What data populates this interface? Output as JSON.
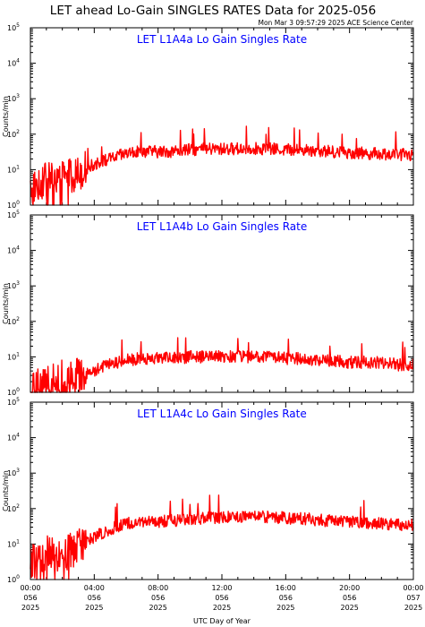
{
  "header": {
    "title": "LET ahead Lo-Gain SINGLES RATES Data for 2025-056",
    "timestamp": "Mon Mar  3 09:57:29 2025 ACE Science Center"
  },
  "colors": {
    "series": "#ff0000",
    "panel_title": "#0000ff"
  },
  "chart_data": [
    {
      "type": "line",
      "title": "LET L1A4a Lo Gain Singles Rate",
      "ylabel": "Counts/min",
      "yscale": "log",
      "ylim": [
        1,
        100000
      ],
      "ytick_exponents": [
        "0",
        "1",
        "2",
        "3",
        "4",
        "5"
      ],
      "xlim": [
        0,
        24
      ],
      "x_hours": [
        0,
        1,
        2,
        3,
        4,
        5,
        6,
        7,
        8,
        9,
        10,
        11,
        12,
        13,
        14,
        15,
        16,
        17,
        18,
        19,
        20,
        21,
        22,
        23,
        24
      ],
      "series": [
        {
          "values": [
            3,
            5,
            6,
            8,
            14,
            20,
            28,
            33,
            32,
            33,
            36,
            38,
            38,
            39,
            40,
            38,
            37,
            36,
            34,
            32,
            30,
            29,
            28,
            27,
            26
          ]
        }
      ]
    },
    {
      "type": "line",
      "title": "LET L1A4b Lo Gain Singles Rate",
      "ylabel": "Counts/min",
      "yscale": "log",
      "ylim": [
        1,
        100000
      ],
      "ytick_exponents": [
        "0",
        "1",
        "2",
        "3",
        "4",
        "5"
      ],
      "xlim": [
        0,
        24
      ],
      "x_hours": [
        0,
        1,
        2,
        3,
        4,
        5,
        6,
        7,
        8,
        9,
        10,
        11,
        12,
        13,
        14,
        15,
        16,
        17,
        18,
        19,
        20,
        21,
        22,
        23,
        24
      ],
      "series": [
        {
          "values": [
            1.5,
            2,
            2,
            3,
            4,
            6,
            8,
            9,
            9,
            9,
            10,
            10,
            10,
            10,
            10,
            10,
            9,
            9,
            8,
            8,
            7,
            7,
            7,
            6,
            6
          ]
        }
      ]
    },
    {
      "type": "line",
      "title": "LET L1A4c Lo Gain Singles Rate",
      "ylabel": "Counts/min",
      "yscale": "log",
      "ylim": [
        1,
        100000
      ],
      "ytick_exponents": [
        "0",
        "1",
        "2",
        "3",
        "4",
        "5"
      ],
      "xlim": [
        0,
        24
      ],
      "x_hours": [
        0,
        1,
        2,
        3,
        4,
        5,
        6,
        7,
        8,
        9,
        10,
        11,
        12,
        13,
        14,
        15,
        16,
        17,
        18,
        19,
        20,
        21,
        22,
        23,
        24
      ],
      "series": [
        {
          "values": [
            3,
            4,
            5,
            8,
            15,
            26,
            38,
            42,
            44,
            46,
            50,
            54,
            56,
            58,
            60,
            58,
            55,
            52,
            48,
            45,
            42,
            40,
            38,
            36,
            34
          ]
        }
      ]
    }
  ],
  "x_axis": {
    "label": "UTC Day of Year",
    "ticks": [
      {
        "time": "00:00",
        "day": "056",
        "year": "2025",
        "hour": 0
      },
      {
        "time": "04:00",
        "day": "056",
        "year": "2025",
        "hour": 4
      },
      {
        "time": "08:00",
        "day": "056",
        "year": "2025",
        "hour": 8
      },
      {
        "time": "12:00",
        "day": "056",
        "year": "2025",
        "hour": 12
      },
      {
        "time": "16:00",
        "day": "056",
        "year": "2025",
        "hour": 16
      },
      {
        "time": "20:00",
        "day": "056",
        "year": "2025",
        "hour": 20
      },
      {
        "time": "00:00",
        "day": "057",
        "year": "2025",
        "hour": 24
      }
    ]
  }
}
